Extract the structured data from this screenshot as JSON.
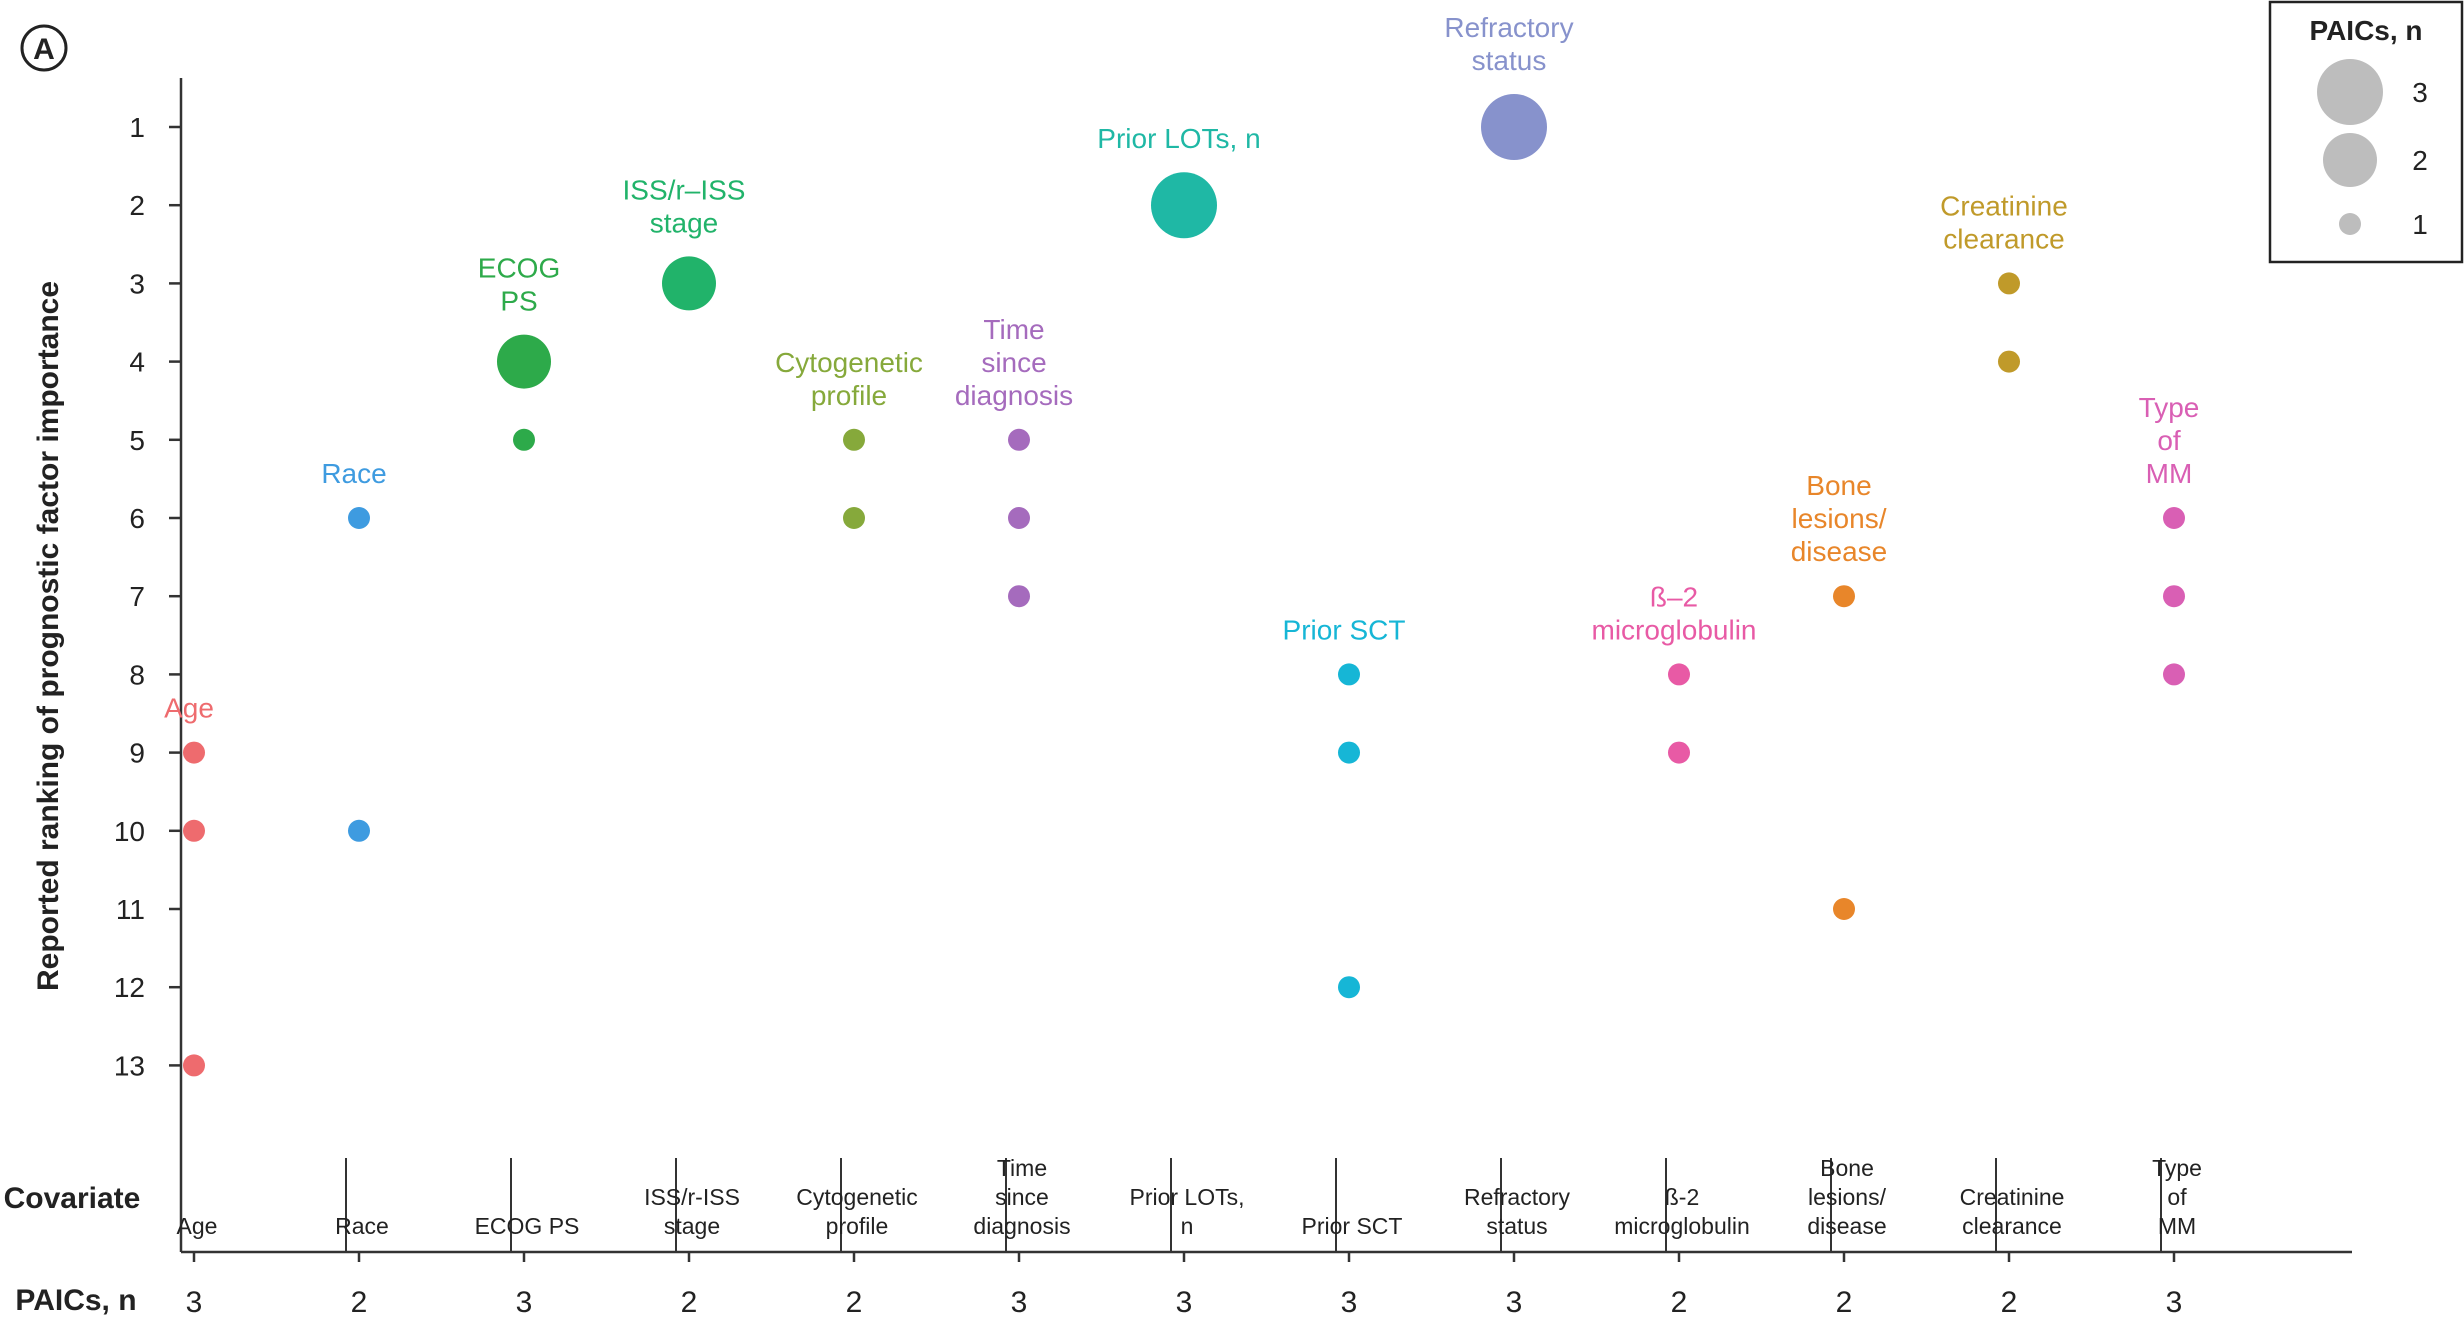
{
  "panel_label": "A",
  "chart_data": {
    "type": "scatter",
    "ylabel": "Reported ranking of prognostic factor importance",
    "y_ticks": [
      1,
      2,
      3,
      4,
      5,
      6,
      7,
      8,
      9,
      10,
      11,
      12,
      13
    ],
    "ylim": [
      0.4,
      14.2
    ],
    "y_inverted": true,
    "grid": false,
    "covariate_row_label": "Covariate",
    "paics_row_label": "PAICs, n",
    "legend": {
      "title": "PAICs, n",
      "placement": "top-right",
      "entries": [
        {
          "label": "3",
          "size": 3
        },
        {
          "label": "2",
          "size": 2
        },
        {
          "label": "1",
          "size": 1
        }
      ],
      "color": "#bdbdbd"
    },
    "covariates": [
      {
        "name": "Age",
        "annotation": [
          "Age"
        ],
        "table_label": [
          "Age"
        ],
        "paics": "3",
        "color": "#ee6b6e",
        "points": [
          {
            "rank": 9,
            "count": 1
          },
          {
            "rank": 10,
            "count": 1
          },
          {
            "rank": 13,
            "count": 1
          }
        ]
      },
      {
        "name": "Race",
        "annotation": [
          "Race"
        ],
        "table_label": [
          "Race"
        ],
        "paics": "2",
        "color": "#3e9be0",
        "points": [
          {
            "rank": 6,
            "count": 1
          },
          {
            "rank": 10,
            "count": 1
          }
        ]
      },
      {
        "name": "ECOG PS",
        "annotation": [
          "ECOG",
          "PS"
        ],
        "table_label": [
          "ECOG PS"
        ],
        "paics": "3",
        "color": "#2daa4a",
        "points": [
          {
            "rank": 4,
            "count": 2
          },
          {
            "rank": 5,
            "count": 1
          }
        ]
      },
      {
        "name": "ISS/r-ISS stage",
        "annotation": [
          "ISS/r–ISS",
          "stage"
        ],
        "table_label": [
          "ISS/r-ISS",
          "stage"
        ],
        "paics": "2",
        "color": "#21b36a",
        "points": [
          {
            "rank": 3,
            "count": 2
          }
        ]
      },
      {
        "name": "Cytogenetic profile",
        "annotation": [
          "Cytogenetic",
          "profile"
        ],
        "table_label": [
          "Cytogenetic",
          "profile"
        ],
        "paics": "2",
        "color": "#86a93b",
        "points": [
          {
            "rank": 5,
            "count": 1
          },
          {
            "rank": 6,
            "count": 1
          }
        ]
      },
      {
        "name": "Time since diagnosis",
        "annotation": [
          "Time",
          "since",
          "diagnosis"
        ],
        "table_label": [
          "Time",
          "since",
          "diagnosis"
        ],
        "paics": "3",
        "color": "#a56bbd",
        "points": [
          {
            "rank": 5,
            "count": 1
          },
          {
            "rank": 6,
            "count": 1
          },
          {
            "rank": 7,
            "count": 1
          }
        ]
      },
      {
        "name": "Prior LOTs, n",
        "annotation": [
          "Prior LOTs, n"
        ],
        "table_label": [
          "Prior LOTs,",
          "n"
        ],
        "paics": "3",
        "color": "#1fb8a5",
        "points": [
          {
            "rank": 2,
            "count": 3
          }
        ]
      },
      {
        "name": "Prior SCT",
        "annotation": [
          "Prior SCT"
        ],
        "table_label": [
          "Prior SCT"
        ],
        "paics": "3",
        "color": "#16b6d6",
        "points": [
          {
            "rank": 8,
            "count": 1
          },
          {
            "rank": 9,
            "count": 1
          },
          {
            "rank": 12,
            "count": 1
          }
        ]
      },
      {
        "name": "Refractory status",
        "annotation": [
          "Refractory",
          "status"
        ],
        "table_label": [
          "Refractory",
          "status"
        ],
        "paics": "3",
        "color": "#8792cc",
        "points": [
          {
            "rank": 1,
            "count": 3
          }
        ]
      },
      {
        "name": "ß-2 microglobulin",
        "annotation": [
          "ß–2",
          "microglobulin"
        ],
        "table_label": [
          "ß-2",
          "microglobulin"
        ],
        "paics": "2",
        "color": "#e85aa5",
        "points": [
          {
            "rank": 8,
            "count": 1
          },
          {
            "rank": 9,
            "count": 1
          }
        ]
      },
      {
        "name": "Bone lesions/disease",
        "annotation": [
          "Bone",
          "lesions/",
          "disease"
        ],
        "table_label": [
          "Bone",
          "lesions/",
          "disease"
        ],
        "paics": "2",
        "color": "#e8862a",
        "points": [
          {
            "rank": 7,
            "count": 1
          },
          {
            "rank": 11,
            "count": 1
          }
        ]
      },
      {
        "name": "Creatinine clearance",
        "annotation": [
          "Creatinine",
          "clearance"
        ],
        "table_label": [
          "Creatinine",
          "clearance"
        ],
        "paics": "2",
        "color": "#c09a2a",
        "points": [
          {
            "rank": 3,
            "count": 1
          },
          {
            "rank": 4,
            "count": 1
          }
        ]
      },
      {
        "name": "Type of MM",
        "annotation": [
          "Type",
          "of",
          "MM"
        ],
        "table_label": [
          "Type",
          "of",
          "MM"
        ],
        "paics": "3",
        "color": "#d95fb4",
        "points": [
          {
            "rank": 6,
            "count": 1
          },
          {
            "rank": 7,
            "count": 1
          },
          {
            "rank": 8,
            "count": 1
          }
        ]
      }
    ]
  }
}
